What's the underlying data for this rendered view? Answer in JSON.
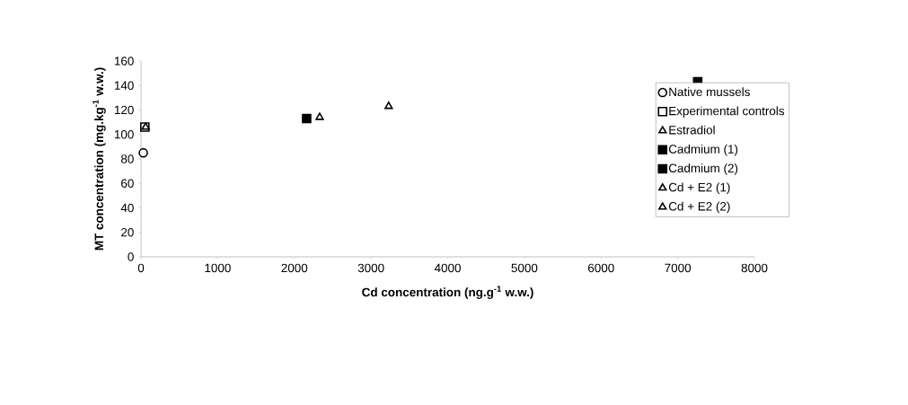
{
  "chart_data": {
    "type": "scatter",
    "xlabel": "Cd concentration (ng.g$^{-1}$ w.w.)",
    "ylabel": "MT concentration (mg.kg$^{-1}$ w.w.)",
    "xlim": [
      0,
      8000
    ],
    "xticks": [
      0,
      1000,
      2000,
      3000,
      4000,
      5000,
      6000,
      7000,
      8000
    ],
    "ylim": [
      0,
      160
    ],
    "yticks": [
      0,
      20,
      40,
      60,
      80,
      100,
      120,
      140,
      160
    ],
    "grid": false,
    "legend": "right",
    "series": [
      {
        "name": "Native mussels",
        "color": "#ffffff",
        "marker": "circle",
        "x": [
          30
        ],
        "values": [
          85
        ]
      },
      {
        "name": "Experimental controls",
        "color": "#ffffff",
        "marker": "square",
        "x": [
          50
        ],
        "values": [
          106
        ]
      },
      {
        "name": "Estradiol",
        "color": "#ffffff",
        "marker": "triangle",
        "x": [
          60
        ],
        "values": [
          106
        ]
      },
      {
        "name": "Cadmium (1)",
        "color": "#000000",
        "marker": "square",
        "x": [
          2160
        ],
        "values": [
          113
        ]
      },
      {
        "name": "Cadmium (2)",
        "color": "#000000",
        "marker": "square",
        "x": [
          7260
        ],
        "values": [
          143
        ]
      },
      {
        "name": "Cd + E2 (1)",
        "color": "#ffffff",
        "marker": "triangle",
        "x": [
          2330
        ],
        "values": [
          114
        ]
      },
      {
        "name": "Cd + E2 (2)",
        "color": "#ffffff",
        "marker": "triangle",
        "x": [
          3230
        ],
        "values": [
          123
        ]
      }
    ]
  }
}
